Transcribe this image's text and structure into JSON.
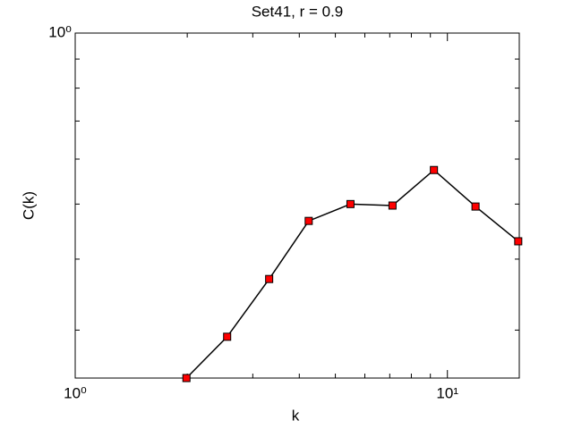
{
  "chart_data": {
    "type": "line",
    "title": "Set41, r = 0.9",
    "x_label": "k",
    "y_label": "C(k)",
    "x": [
      1.99,
      2.56,
      3.32,
      4.24,
      5.49,
      7.12,
      9.2,
      11.9,
      15.5
    ],
    "series": [
      {
        "color": "#000000",
        "marker_color": "#ff0000",
        "values": [
          0.247,
          0.292,
          0.369,
          0.467,
          0.5,
          0.497,
          0.574,
          0.495,
          0.43
        ]
      }
    ],
    "x_scale": "log",
    "y_scale": "log",
    "xlim": [
      1,
      15.6
    ],
    "ylim": [
      0.247,
      1
    ],
    "xticks": [
      {
        "value": 1,
        "label": "10⁰"
      },
      {
        "value": 10,
        "label": "10¹"
      }
    ],
    "yticks": [
      {
        "value": 1,
        "label": "10⁰"
      }
    ],
    "xminorticks": [
      2,
      3,
      4,
      5,
      6,
      7,
      8,
      9
    ],
    "yminorticks": [
      0.3,
      0.4,
      0.5,
      0.6,
      0.7,
      0.8,
      0.9
    ]
  }
}
